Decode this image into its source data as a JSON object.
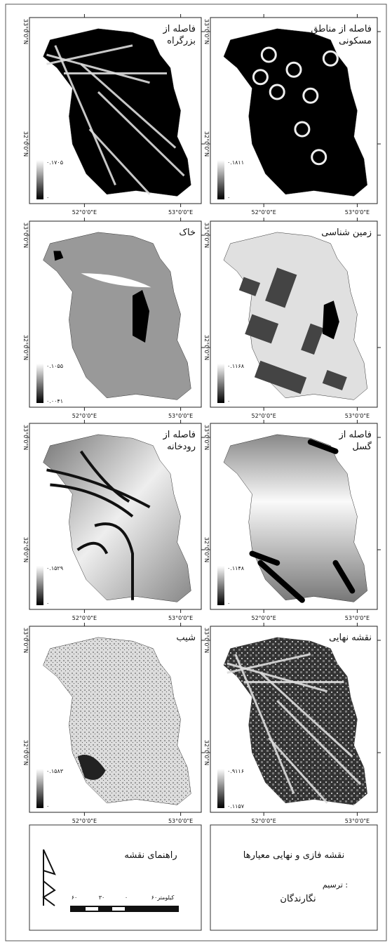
{
  "lat_labels": [
    "33°0'0\"N",
    "32°0'0\"N"
  ],
  "lon_labels": [
    "52°0'0\"E",
    "53°0'0\"E"
  ],
  "panels": [
    {
      "title": [
        "فاصله از",
        "بزرگراه"
      ],
      "legend_max": "۰.۱۷۰۵",
      "legend_min": "۰"
    },
    {
      "title": [
        "فاصله از مناطق",
        "مسکونی"
      ],
      "legend_max": "۰.۱۸۱۱",
      "legend_min": "۰"
    },
    {
      "title": [
        "خاک"
      ],
      "legend_max": "۰.۱۰۵۵",
      "legend_min": "۰.۰۰۴۱"
    },
    {
      "title": [
        "زمین شناسی"
      ],
      "legend_max": "۰.۱۱۶۸",
      "legend_min": "۰"
    },
    {
      "title": [
        "فاصله از",
        "رودخانه"
      ],
      "legend_max": "۰.۱۵۲۹",
      "legend_min": "۰"
    },
    {
      "title": [
        "فاصله از",
        "گسل"
      ],
      "legend_max": "۰.۱۱۴۸",
      "legend_min": "۰"
    },
    {
      "title": [
        "شیب"
      ],
      "legend_max": "۰.۱۵۸۳",
      "legend_min": "۰"
    },
    {
      "title": [
        "نقشه نهایی"
      ],
      "legend_max": "۰.۹۱۱۶",
      "legend_min": "۰.۱۱۵۷"
    }
  ],
  "legend_box": {
    "title": "راهنمای نقشه",
    "scale_labels": [
      "۶۰",
      "۳۰",
      "۰",
      "۶۰کیلومتر"
    ]
  },
  "caption_box": {
    "title": "نقشه فازی و نهایی معیارها",
    "drawn_by": "ترسیم :",
    "author": "نگارندگان"
  }
}
